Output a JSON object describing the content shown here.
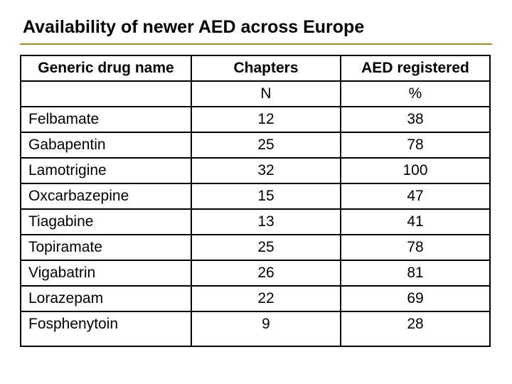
{
  "title": "Availability of newer AED across Europe",
  "table": {
    "headers": {
      "col1": "Generic drug name",
      "col2": "Chapters",
      "col3": "AED registered"
    },
    "subheaders": {
      "col1": "",
      "col2": "N",
      "col3": "%"
    },
    "rows": [
      {
        "name": "Felbamate",
        "chapters": "12",
        "pct": "38"
      },
      {
        "name": "Gabapentin",
        "chapters": "25",
        "pct": "78"
      },
      {
        "name": "Lamotrigine",
        "chapters": "32",
        "pct": "100"
      },
      {
        "name": "Oxcarbazepine",
        "chapters": "15",
        "pct": "47"
      },
      {
        "name": "Tiagabine",
        "chapters": "13",
        "pct": "41"
      },
      {
        "name": "Topiramate",
        "chapters": "25",
        "pct": "78"
      },
      {
        "name": "Vigabatrin",
        "chapters": "26",
        "pct": "81"
      },
      {
        "name": "Lorazepam",
        "chapters": "22",
        "pct": "69"
      },
      {
        "name": "Fosphenytoin",
        "chapters": "9",
        "pct": "28"
      }
    ],
    "colors": {
      "accent": "#a08830",
      "border": "#000000",
      "background": "#ffffff"
    },
    "fontsize_title": 25,
    "fontsize_cell": 21
  }
}
